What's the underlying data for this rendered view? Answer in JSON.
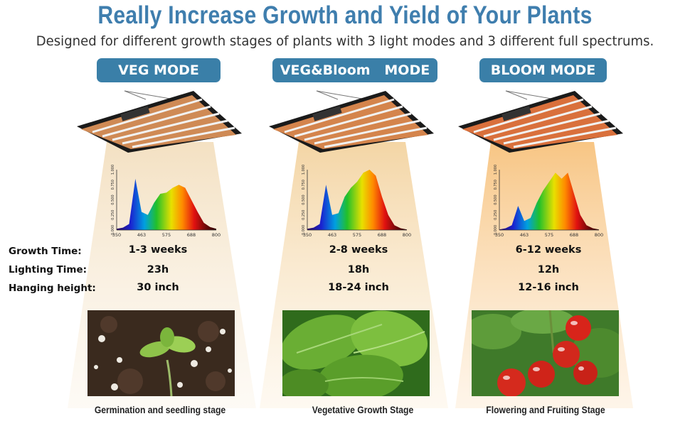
{
  "header": {
    "title": "Really Increase Growth and Yield of Your Plants",
    "subtitle": "Designed for different growth stages of plants with 3 light modes and 3 different full spectrums."
  },
  "row_labels": {
    "growth_time": "Growth Time:",
    "lighting_time": "Lighting Time:",
    "hanging_height": "Hanging height:"
  },
  "spectrum_axis": {
    "x_ticks": [
      "350",
      "463",
      "575",
      "688",
      "800"
    ],
    "y_ticks": [
      "0.000",
      "0.250",
      "0.500",
      "0.750",
      "1.000"
    ]
  },
  "modes": [
    {
      "label": "VEG MODE",
      "growth_time": "1-3 weeks",
      "lighting_time": "23h",
      "hanging_height": "30 inch",
      "caption": "Germination and seedling stage",
      "beam_color": "#f5e2c2",
      "spectrum": [
        0.02,
        0.04,
        0.1,
        0.85,
        0.3,
        0.25,
        0.45,
        0.6,
        0.62,
        0.7,
        0.75,
        0.7,
        0.5,
        0.3,
        0.12,
        0.05,
        0.02
      ]
    },
    {
      "label": "VEG&Bloom   MODE",
      "growth_time": "2-8 weeks",
      "lighting_time": "18h",
      "hanging_height": "18-24 inch",
      "caption": "Vegetative Growth Stage",
      "beam_color": "#f4d8a8",
      "spectrum": [
        0.02,
        0.04,
        0.1,
        0.75,
        0.25,
        0.28,
        0.55,
        0.7,
        0.8,
        0.95,
        1.0,
        0.9,
        0.55,
        0.25,
        0.08,
        0.03,
        0.01
      ]
    },
    {
      "label": "BLOOM MODE",
      "growth_time": "6-12 weeks",
      "lighting_time": "12h",
      "hanging_height": "12-16 inch",
      "caption": "Flowering and Fruiting Stage",
      "beam_color": "#f7c98a",
      "spectrum": [
        0.01,
        0.03,
        0.08,
        0.4,
        0.15,
        0.2,
        0.45,
        0.65,
        0.8,
        0.95,
        0.85,
        0.95,
        0.6,
        0.25,
        0.08,
        0.03,
        0.01
      ]
    }
  ]
}
